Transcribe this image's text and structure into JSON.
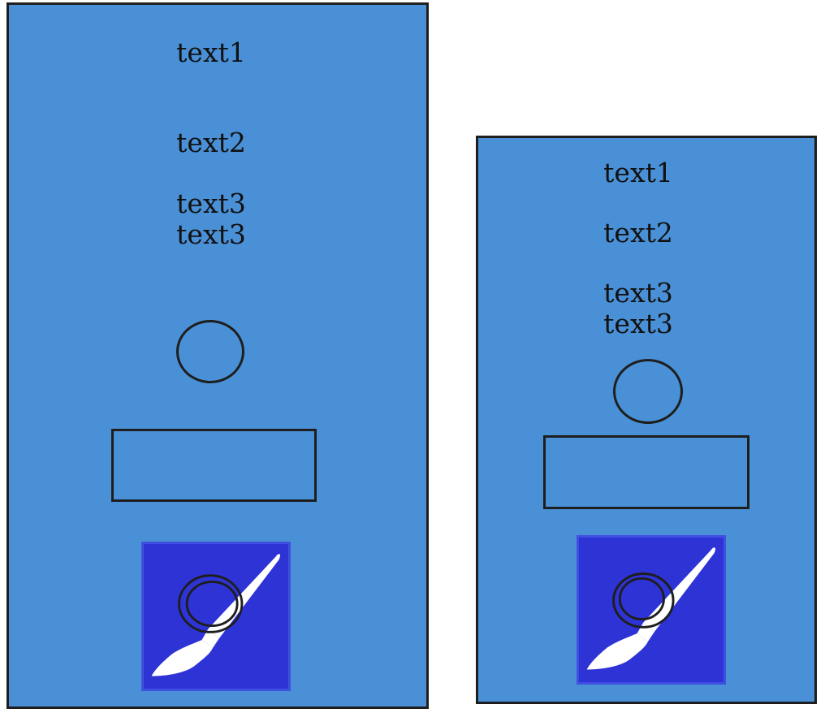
{
  "colors": {
    "panel_background": "#4a90d6",
    "icon_tile_background": "#2e33d6",
    "outline": "#1e1e1e"
  },
  "panels": [
    {
      "text1": "text1",
      "text2": "text2",
      "text3_line1": "text3",
      "text3_line2": "text3",
      "icon": "paintbrush-icon"
    },
    {
      "text1": "text1",
      "text2": "text2",
      "text3_line1": "text3",
      "text3_line2": "text3",
      "icon": "paintbrush-icon"
    }
  ]
}
